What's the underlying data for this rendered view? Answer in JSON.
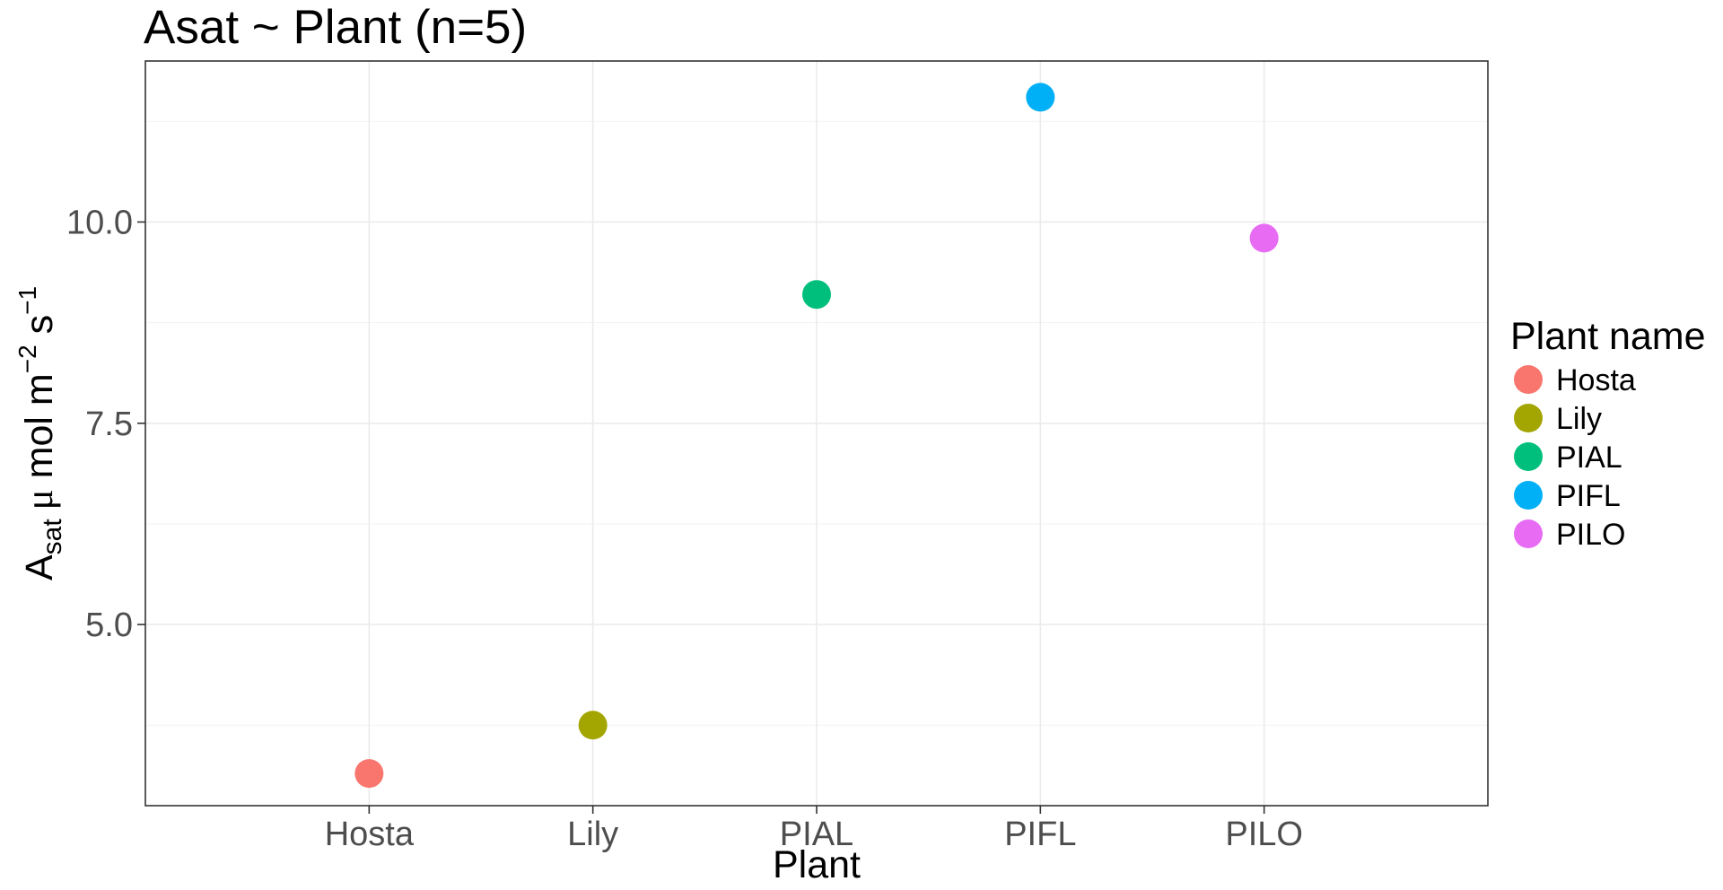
{
  "chart_data": {
    "type": "scatter",
    "title": "Asat ~ Plant (n=5)",
    "xlabel": "Plant",
    "ylabel": {
      "A": "A",
      "sub": "sat",
      "mu": "μ",
      "mol_m": " mol m",
      "exp_m": "−2",
      "s": " s",
      "exp_s": "−1"
    },
    "categories": [
      "Hosta",
      "Lily",
      "PIAL",
      "PIFL",
      "PILO"
    ],
    "values": [
      3.15,
      3.75,
      9.1,
      11.55,
      9.8
    ],
    "colors": [
      "#F8766D",
      "#A3A500",
      "#00BF7D",
      "#00B0F6",
      "#E76BF3"
    ],
    "ylim": [
      2.75,
      12.0
    ],
    "yticks": [
      5.0,
      7.5,
      10.0
    ],
    "ytick_labels": [
      "5.0",
      "7.5",
      "10.0"
    ],
    "grid": true,
    "legend": {
      "title": "Plant name",
      "placement": "right",
      "entries": [
        "Hosta",
        "Lily",
        "PIAL",
        "PIFL",
        "PILO"
      ]
    }
  }
}
